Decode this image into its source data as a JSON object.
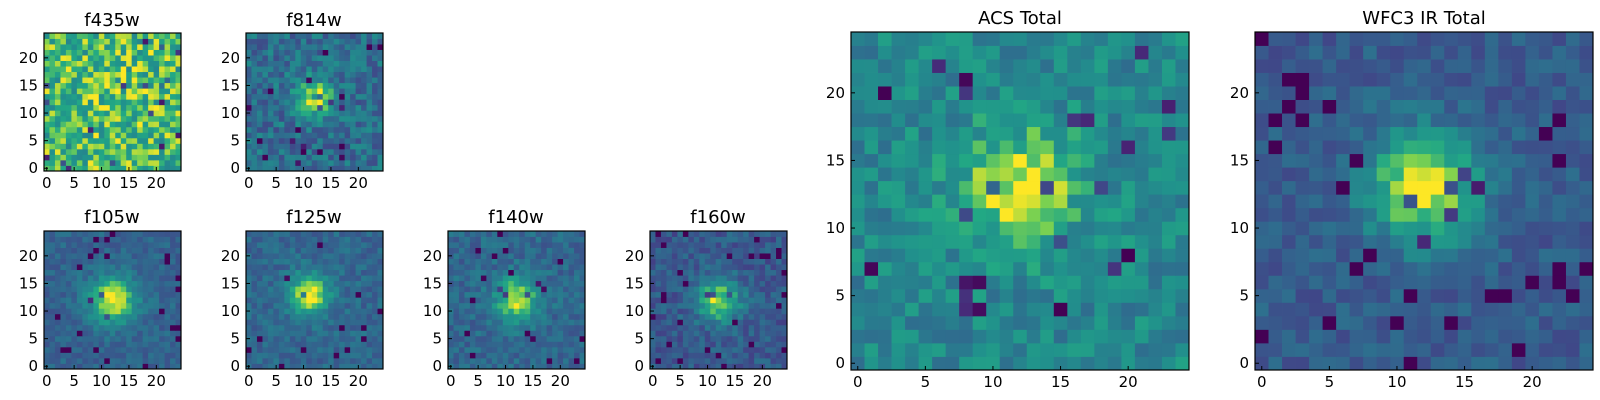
{
  "chart_data": [
    {
      "type": "heatmap",
      "title": "f435w",
      "grid": [
        25,
        25
      ],
      "xticks": [
        0,
        5,
        10,
        15,
        20
      ],
      "yticks": [
        0,
        5,
        10,
        15,
        20
      ],
      "xlim": [
        0,
        24
      ],
      "ylim": [
        0,
        24
      ],
      "source": {
        "peak": [
          12,
          12
        ],
        "width": 4.0,
        "strength": 0.05
      },
      "background": 0.78,
      "noise": 0.22,
      "colormap": "viridis"
    },
    {
      "type": "heatmap",
      "title": "f814w",
      "grid": [
        25,
        25
      ],
      "xticks": [
        0,
        5,
        10,
        15,
        20
      ],
      "yticks": [
        0,
        5,
        10,
        15,
        20
      ],
      "xlim": [
        0,
        24
      ],
      "ylim": [
        0,
        24
      ],
      "source": {
        "peak": [
          12,
          13
        ],
        "width": 2.2,
        "strength": 0.55
      },
      "background": 0.45,
      "noise": 0.17,
      "colormap": "viridis"
    },
    {
      "type": "heatmap",
      "title": "f105w",
      "grid": [
        25,
        25
      ],
      "xticks": [
        0,
        5,
        10,
        15,
        20
      ],
      "yticks": [
        0,
        5,
        10,
        15,
        20
      ],
      "xlim": [
        0,
        24
      ],
      "ylim": [
        0,
        24
      ],
      "source": {
        "peak": [
          12,
          12
        ],
        "width": 3.0,
        "strength": 0.6
      },
      "background": 0.4,
      "noise": 0.09,
      "colormap": "viridis"
    },
    {
      "type": "heatmap",
      "title": "f125w",
      "grid": [
        25,
        25
      ],
      "xticks": [
        0,
        5,
        10,
        15,
        20
      ],
      "yticks": [
        0,
        5,
        10,
        15,
        20
      ],
      "xlim": [
        0,
        24
      ],
      "ylim": [
        0,
        24
      ],
      "source": {
        "peak": [
          11,
          13
        ],
        "width": 2.6,
        "strength": 0.58
      },
      "background": 0.42,
      "noise": 0.1,
      "colormap": "viridis"
    },
    {
      "type": "heatmap",
      "title": "f140w",
      "grid": [
        25,
        25
      ],
      "xticks": [
        0,
        5,
        10,
        15,
        20
      ],
      "yticks": [
        0,
        5,
        10,
        15,
        20
      ],
      "xlim": [
        0,
        24
      ],
      "ylim": [
        0,
        24
      ],
      "source": {
        "peak": [
          12,
          12
        ],
        "width": 2.8,
        "strength": 0.55
      },
      "background": 0.42,
      "noise": 0.11,
      "colormap": "viridis"
    },
    {
      "type": "heatmap",
      "title": "f160w",
      "grid": [
        25,
        25
      ],
      "xticks": [
        0,
        5,
        10,
        15,
        20
      ],
      "yticks": [
        0,
        5,
        10,
        15,
        20
      ],
      "xlim": [
        0,
        24
      ],
      "ylim": [
        0,
        24
      ],
      "source": {
        "peak": [
          12,
          12
        ],
        "width": 2.8,
        "strength": 0.58
      },
      "background": 0.35,
      "noise": 0.12,
      "colormap": "viridis"
    },
    {
      "type": "heatmap",
      "title": "ACS Total",
      "grid": [
        25,
        25
      ],
      "xticks": [
        0,
        5,
        10,
        15,
        20
      ],
      "yticks": [
        0,
        5,
        10,
        15,
        20
      ],
      "xlim": [
        0,
        24
      ],
      "ylim": [
        0,
        24
      ],
      "source": {
        "peak": [
          12,
          13
        ],
        "width": 3.0,
        "strength": 0.4
      },
      "background": 0.58,
      "noise": 0.14,
      "colormap": "viridis"
    },
    {
      "type": "heatmap",
      "title": "WFC3 IR Total",
      "grid": [
        25,
        25
      ],
      "xticks": [
        0,
        5,
        10,
        15,
        20
      ],
      "yticks": [
        0,
        5,
        10,
        15,
        20
      ],
      "xlim": [
        0,
        24
      ],
      "ylim": [
        0,
        24
      ],
      "source": {
        "peak": [
          12,
          13
        ],
        "width": 3.0,
        "strength": 0.62
      },
      "background": 0.36,
      "noise": 0.1,
      "colormap": "viridis"
    }
  ]
}
